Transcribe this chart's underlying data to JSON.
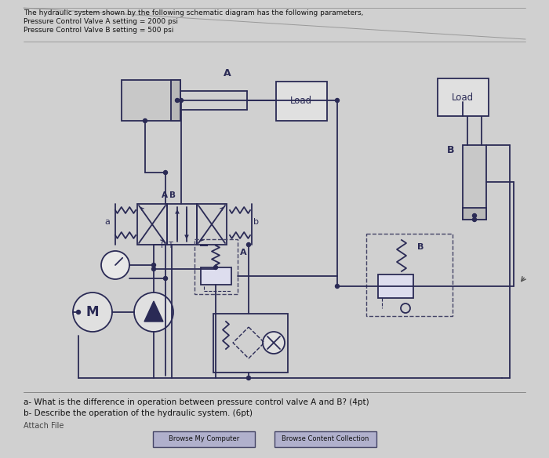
{
  "bg_color": "#d0d0d0",
  "line_color": "#2a2a55",
  "title_lines": [
    "The hydraulic system shown by the following schematic diagram has the following parameters,",
    "Pressure Control Valve A setting = 2000 psi",
    "Pressure Control Valve B setting = 500 psi"
  ],
  "bottom_lines": [
    "a- What is the difference in operation between pressure control valve A and B? (4pt)",
    "b- Describe the operation of the hydraulic system. (6pt)"
  ],
  "bottom_line3": "Attach File",
  "btn1": "Browse My Computer",
  "btn2": "Browse Content Collection",
  "fig_width": 7.0,
  "fig_height": 5.84,
  "dpi": 100
}
